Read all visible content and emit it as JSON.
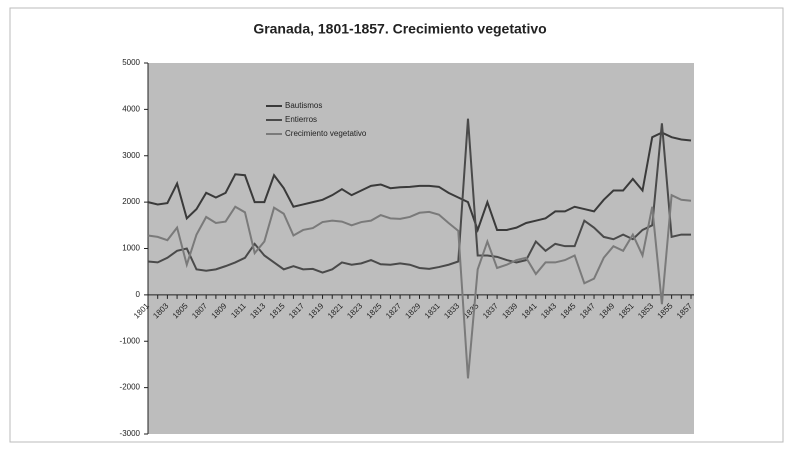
{
  "chart_data": {
    "type": "line",
    "title": "Granada, 1801-1857. Crecimiento vegetativo",
    "categories": [
      "1801",
      null,
      "1803",
      null,
      "1805",
      null,
      "1807",
      null,
      "1809",
      null,
      "1811",
      null,
      "1813",
      null,
      "1815",
      null,
      "1817",
      null,
      "1819",
      null,
      "1821",
      null,
      "1823",
      null,
      "1825",
      null,
      "1827",
      null,
      "1829",
      null,
      "1831",
      null,
      "1833",
      null,
      "1835",
      null,
      "1837",
      null,
      "1839",
      null,
      "1841",
      null,
      "1843",
      null,
      "1845",
      null,
      "1847",
      null,
      "1849",
      null,
      "1851",
      null,
      "1853",
      null,
      "1855",
      null,
      "1857"
    ],
    "series": [
      {
        "name": "Bautismos",
        "color": "#3a3a3a",
        "values": [
          2000,
          1950,
          1980,
          2400,
          1650,
          1850,
          2200,
          2100,
          2200,
          2600,
          2580,
          2000,
          2000,
          2580,
          2300,
          1900,
          1950,
          2000,
          2050,
          2150,
          2280,
          2150,
          2250,
          2350,
          2380,
          2300,
          2320,
          2330,
          2350,
          2350,
          2330,
          2200,
          2100,
          2000,
          1400,
          2000,
          1400,
          1400,
          1450,
          1550,
          1600,
          1650,
          1800,
          1800,
          1900,
          1850,
          1800,
          2050,
          2250,
          2250,
          2500,
          2250,
          3400,
          3500,
          3400,
          3350,
          3330
        ]
      },
      {
        "name": "Entierros",
        "color": "#4a4a4a",
        "values": [
          720,
          700,
          800,
          950,
          1000,
          550,
          520,
          550,
          620,
          700,
          800,
          1100,
          850,
          700,
          550,
          620,
          550,
          560,
          480,
          550,
          700,
          650,
          680,
          750,
          660,
          650,
          680,
          650,
          580,
          560,
          600,
          650,
          720,
          3800,
          850,
          850,
          820,
          750,
          700,
          750,
          1150,
          950,
          1100,
          1050,
          1050,
          1600,
          1450,
          1250,
          1200,
          1300,
          1200,
          1400,
          1500,
          3700,
          1250,
          1300,
          1300
        ]
      },
      {
        "name": "Crecimiento vegetativo",
        "color": "#7a7a7a",
        "values": [
          1280,
          1250,
          1180,
          1450,
          650,
          1300,
          1680,
          1550,
          1580,
          1900,
          1780,
          900,
          1150,
          1880,
          1750,
          1280,
          1400,
          1440,
          1570,
          1600,
          1580,
          1500,
          1570,
          1600,
          1720,
          1650,
          1640,
          1680,
          1770,
          1790,
          1730,
          1550,
          1380,
          -1800,
          550,
          1150,
          580,
          650,
          750,
          800,
          450,
          700,
          700,
          750,
          850,
          250,
          350,
          800,
          1050,
          950,
          1300,
          850,
          1900,
          -200,
          2150,
          2050,
          2030
        ]
      }
    ],
    "ylim": [
      -3000,
      5000
    ],
    "yticks": [
      -3000,
      -2000,
      -1000,
      0,
      1000,
      2000,
      3000,
      4000,
      5000
    ],
    "grid": false
  }
}
